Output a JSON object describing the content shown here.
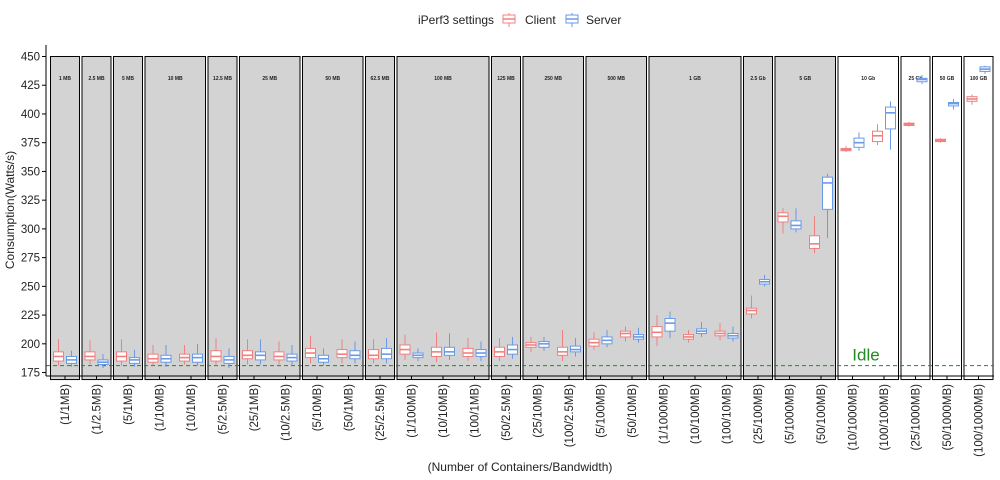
{
  "legend": {
    "title": "iPerf3 settings",
    "items": [
      {
        "name": "Client",
        "color": "#F08080"
      },
      {
        "name": "Server",
        "color": "#6A9AE8"
      }
    ],
    "position": "top"
  },
  "chart_data": {
    "type": "box",
    "xlabel": "(Number of Containers/Bandwidth)",
    "ylabel": "Consumption(Watts/s)",
    "ylim": [
      172,
      460
    ],
    "yticks": [
      175,
      200,
      225,
      250,
      275,
      300,
      325,
      350,
      375,
      400,
      425,
      450
    ],
    "idle": {
      "label": "Idle",
      "value": 181,
      "color": "#228B22"
    },
    "panel_fill": "#D3D3D3",
    "categories": [
      "(1/1MB)",
      "(1/2.5MB)",
      "(5/1MB)",
      "(1/10MB)",
      "(10/1MB)",
      "(5/2.5MB)",
      "(25/1MB)",
      "(10/2.5MB)",
      "(5/10MB)",
      "(50/1MB)",
      "(25/2.5MB)",
      "(1/100MB)",
      "(10/10MB)",
      "(100/1MB)",
      "(50/2.5MB)",
      "(25/10MB)",
      "(100/2.5MB)",
      "(5/100MB)",
      "(50/10MB)",
      "(1/1000MB)",
      "(10/100MB)",
      "(100/10MB)",
      "(25/100MB)",
      "(5/1000MB)",
      "(50/100MB)",
      "(10/1000MB)",
      "(100/100MB)",
      "(25/1000MB)",
      "(50/1000MB)",
      "(100/1000MB)"
    ],
    "groups": [
      {
        "label": "1 MB",
        "categories": [
          "(1/1MB)"
        ],
        "shaded": true
      },
      {
        "label": "2.5 MB",
        "categories": [
          "(1/2.5MB)"
        ],
        "shaded": true
      },
      {
        "label": "5 MB",
        "categories": [
          "(5/1MB)"
        ],
        "shaded": true
      },
      {
        "label": "10 MB",
        "categories": [
          "(1/10MB)",
          "(10/1MB)"
        ],
        "shaded": true
      },
      {
        "label": "12.5 MB",
        "categories": [
          "(5/2.5MB)"
        ],
        "shaded": true
      },
      {
        "label": "25 MB",
        "categories": [
          "(25/1MB)",
          "(10/2.5MB)"
        ],
        "shaded": true
      },
      {
        "label": "50 MB",
        "categories": [
          "(5/10MB)",
          "(50/1MB)"
        ],
        "shaded": true
      },
      {
        "label": "62.5 MB",
        "categories": [
          "(25/2.5MB)"
        ],
        "shaded": true
      },
      {
        "label": "100 MB",
        "categories": [
          "(1/100MB)",
          "(10/10MB)",
          "(100/1MB)"
        ],
        "shaded": true
      },
      {
        "label": "125 MB",
        "categories": [
          "(50/2.5MB)"
        ],
        "shaded": true
      },
      {
        "label": "250 MB",
        "categories": [
          "(25/10MB)",
          "(100/2.5MB)"
        ],
        "shaded": true
      },
      {
        "label": "500 MB",
        "categories": [
          "(5/100MB)",
          "(50/10MB)"
        ],
        "shaded": true
      },
      {
        "label": "1 GB",
        "categories": [
          "(1/1000MB)",
          "(10/100MB)",
          "(100/10MB)"
        ],
        "shaded": true
      },
      {
        "label": "2.5 Gb",
        "categories": [
          "(25/100MB)"
        ],
        "shaded": true
      },
      {
        "label": "5 GB",
        "categories": [
          "(5/1000MB)",
          "(50/100MB)"
        ],
        "shaded": true
      },
      {
        "label": "10 Gb",
        "categories": [
          "(10/1000MB)",
          "(100/100MB)"
        ],
        "shaded": false
      },
      {
        "label": "25 Gb",
        "categories": [
          "(25/1000MB)"
        ],
        "shaded": false
      },
      {
        "label": "50 GB",
        "categories": [
          "(50/1000MB)"
        ],
        "shaded": false
      },
      {
        "label": "100 GB",
        "categories": [
          "(100/1000MB)"
        ],
        "shaded": false
      }
    ],
    "series": [
      {
        "name": "Client",
        "color": "#F08080",
        "boxes": [
          [
            181,
            185,
            189,
            193,
            204
          ],
          [
            182,
            186,
            189,
            193,
            203
          ],
          [
            181,
            185,
            189,
            193,
            204
          ],
          [
            181,
            184,
            187,
            191,
            199
          ],
          [
            182,
            185,
            188,
            191,
            199
          ],
          [
            181,
            185,
            189,
            194,
            205
          ],
          [
            182,
            187,
            190,
            194,
            204
          ],
          [
            182,
            186,
            189,
            193,
            202
          ],
          [
            183,
            188,
            192,
            196,
            207
          ],
          [
            183,
            188,
            191,
            195,
            204
          ],
          [
            183,
            187,
            190,
            195,
            204
          ],
          [
            186,
            191,
            195,
            199,
            208
          ],
          [
            184,
            189,
            193,
            197,
            210
          ],
          [
            185,
            189,
            192,
            196,
            205
          ],
          [
            185,
            189,
            193,
            197,
            205
          ],
          [
            193,
            197,
            199,
            201,
            206
          ],
          [
            185,
            190,
            193,
            197,
            212
          ],
          [
            195,
            198,
            201,
            204,
            210
          ],
          [
            202,
            206,
            209,
            211,
            215
          ],
          [
            198,
            206,
            210,
            215,
            225
          ],
          [
            201,
            204,
            206,
            208,
            212
          ],
          [
            203,
            207,
            209,
            211,
            218
          ],
          [
            222,
            226,
            229,
            231,
            242
          ],
          [
            296,
            306,
            311,
            314,
            318
          ],
          [
            279,
            283,
            287,
            294,
            311
          ],
          [
            367,
            368,
            369,
            370,
            372
          ],
          [
            373,
            376,
            381,
            385,
            391
          ],
          [
            389,
            390,
            391,
            392,
            393
          ],
          [
            375,
            376,
            377,
            378,
            379
          ],
          [
            408,
            411,
            413,
            415,
            417
          ]
        ]
      },
      {
        "name": "Server",
        "color": "#6A9AE8",
        "boxes": [
          [
            180,
            183,
            186,
            189,
            194
          ],
          [
            179,
            182,
            184,
            186,
            191
          ],
          [
            180,
            183,
            186,
            188,
            195
          ],
          [
            180,
            184,
            187,
            190,
            199
          ],
          [
            181,
            184,
            188,
            191,
            200
          ],
          [
            179,
            183,
            186,
            189,
            196
          ],
          [
            182,
            186,
            190,
            193,
            204
          ],
          [
            181,
            185,
            188,
            191,
            199
          ],
          [
            181,
            184,
            187,
            190,
            196
          ],
          [
            183,
            187,
            190,
            194,
            202
          ],
          [
            183,
            187,
            191,
            196,
            205
          ],
          [
            185,
            188,
            190,
            192,
            196
          ],
          [
            186,
            190,
            193,
            197,
            209
          ],
          [
            185,
            189,
            192,
            195,
            202
          ],
          [
            187,
            191,
            195,
            199,
            206
          ],
          [
            194,
            197,
            200,
            202,
            206
          ],
          [
            189,
            193,
            195,
            198,
            205
          ],
          [
            197,
            200,
            203,
            206,
            212
          ],
          [
            201,
            204,
            206,
            208,
            214
          ],
          [
            205,
            211,
            218,
            222,
            228
          ],
          [
            206,
            209,
            211,
            213,
            219
          ],
          [
            202,
            205,
            207,
            209,
            215
          ],
          [
            250,
            252,
            254,
            256,
            260
          ],
          [
            297,
            300,
            303,
            307,
            318
          ],
          [
            292,
            317,
            340,
            345,
            348
          ],
          [
            368,
            371,
            375,
            379,
            384
          ],
          [
            369,
            387,
            401,
            406,
            411
          ],
          [
            426,
            428,
            430,
            431,
            434
          ],
          [
            404,
            407,
            409,
            410,
            413
          ],
          [
            435,
            437,
            439,
            441,
            442
          ]
        ]
      }
    ]
  }
}
